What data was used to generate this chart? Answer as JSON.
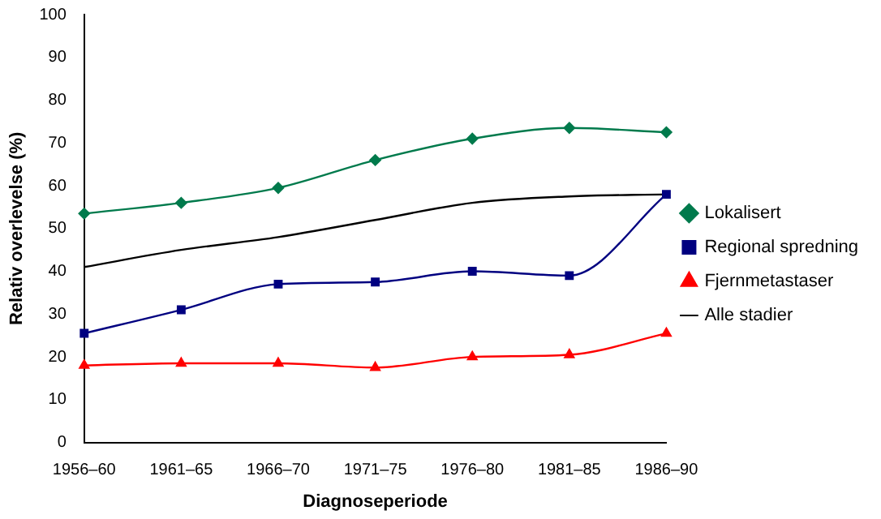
{
  "chart_data": {
    "type": "line",
    "xlabel": "Diagnoseperiode",
    "ylabel": "Relativ overlevelse (%)",
    "categories": [
      "1956–60",
      "1961–65",
      "1966–70",
      "1971–75",
      "1976–80",
      "1981–85",
      "1986–90"
    ],
    "series": [
      {
        "name": "Lokalisert",
        "color": "#007a4c",
        "marker": "diamond",
        "values": [
          53.5,
          56,
          59.5,
          66,
          71,
          73.5,
          72.5
        ]
      },
      {
        "name": "Regional spredning",
        "color": "#000080",
        "marker": "square",
        "values": [
          25.5,
          31,
          37,
          37.5,
          40,
          39,
          58
        ]
      },
      {
        "name": "Fjernmetastaser",
        "color": "#ff0000",
        "marker": "triangle",
        "values": [
          18,
          18.5,
          18.5,
          17.5,
          20,
          20.5,
          25.5
        ]
      },
      {
        "name": "Alle stadier",
        "color": "#000000",
        "marker": "none",
        "values": [
          41,
          45,
          48,
          52,
          56,
          57.5,
          58
        ]
      }
    ],
    "ylim": [
      0,
      100
    ],
    "yticks": [
      0,
      10,
      20,
      30,
      40,
      50,
      60,
      70,
      80,
      90,
      100
    ],
    "grid": false,
    "legend": "right",
    "line_style": "solid"
  }
}
